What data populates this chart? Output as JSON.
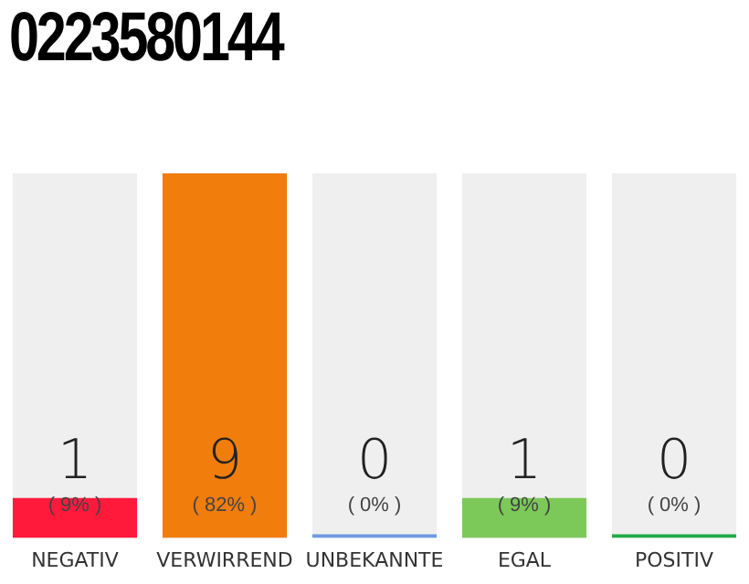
{
  "chart_data": {
    "type": "bar",
    "title": "0223580144",
    "categories": [
      "NEGATIV",
      "VERWIRREND",
      "UNBEKANNTE",
      "EGAL",
      "POSITIV"
    ],
    "values": [
      9,
      82,
      0,
      9,
      0
    ],
    "colors": [
      "#ff1a3c",
      "#f07d0c",
      "#6b9be0",
      "#7cc95a",
      "#22aa44"
    ],
    "value_labels": [
      "( 9% )",
      "( 82% )",
      "( 0% )",
      "( 9% )",
      "( 0% )"
    ],
    "annotations": [
      "1",
      "9",
      "0",
      "1",
      "0"
    ],
    "grid": false,
    "legend": false,
    "tick_labels": "x"
  }
}
